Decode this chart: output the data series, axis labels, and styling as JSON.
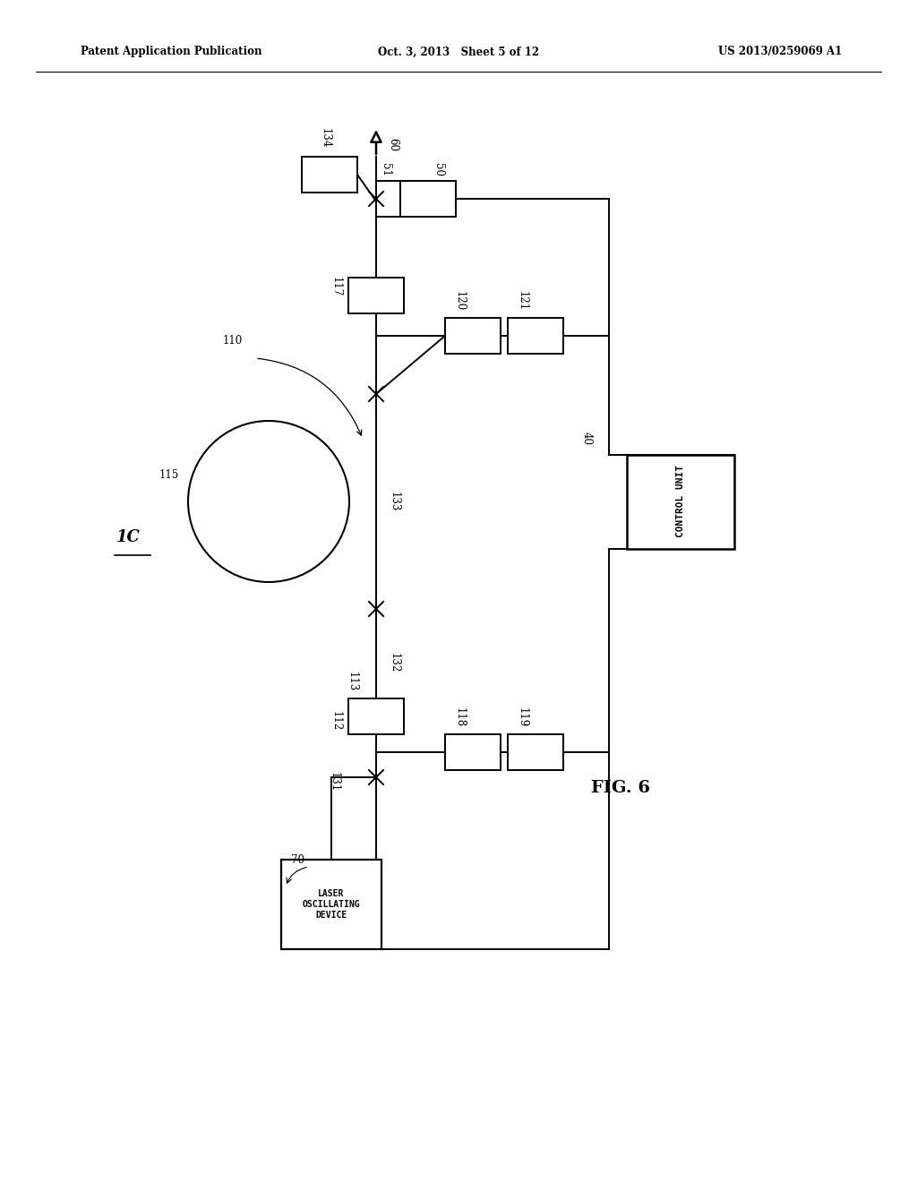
{
  "title_left": "Patent Application Publication",
  "title_mid": "Oct. 3, 2013   Sheet 5 of 12",
  "title_right": "US 2013/0259069 A1",
  "fig_label": "FIG. 6",
  "bg_color": "#ffffff",
  "line_color": "#000000"
}
